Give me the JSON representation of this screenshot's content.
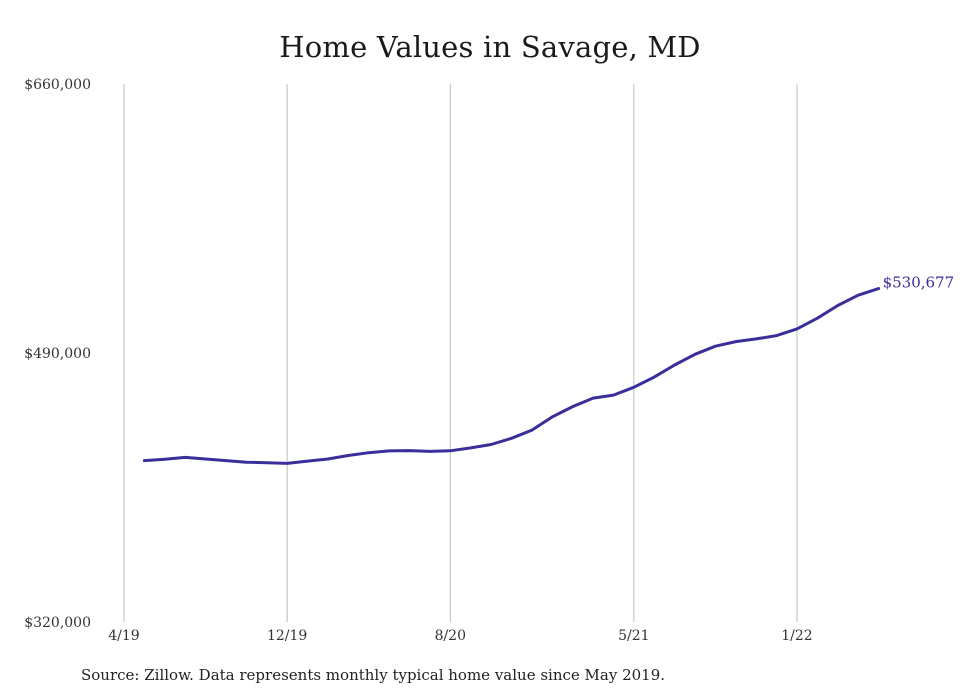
{
  "chart_data": {
    "type": "line",
    "title": "Home Values in Savage, MD",
    "source_note": "Source: Zillow. Data represents monthly typical home value since May 2019.",
    "xlabel": "",
    "ylabel": "",
    "ylim": [
      320000,
      660000
    ],
    "y_ticks": [
      {
        "value": 320000,
        "label": "$320,000"
      },
      {
        "value": 490000,
        "label": "$490,000"
      },
      {
        "value": 660000,
        "label": "$660,000"
      }
    ],
    "x_ticks": [
      {
        "value": "2019-04",
        "label": "4/19"
      },
      {
        "value": "2019-12",
        "label": "12/19"
      },
      {
        "value": "2020-08",
        "label": "8/20"
      },
      {
        "value": "2021-05",
        "label": "5/21"
      },
      {
        "value": "2022-01",
        "label": "1/22"
      }
    ],
    "grid": {
      "vertical": true,
      "horizontal": false
    },
    "line_color": "#3a2e9a",
    "end_label": "$530,677",
    "series": [
      {
        "x": [
          "2019-05",
          "2019-06",
          "2019-07",
          "2019-08",
          "2019-09",
          "2019-10",
          "2019-11",
          "2019-12",
          "2020-01",
          "2020-02",
          "2020-03",
          "2020-04",
          "2020-05",
          "2020-06",
          "2020-07",
          "2020-08",
          "2020-09",
          "2020-10",
          "2020-11",
          "2020-12",
          "2021-01",
          "2021-02",
          "2021-03",
          "2021-04",
          "2021-05",
          "2021-06",
          "2021-07",
          "2021-08",
          "2021-09",
          "2021-10",
          "2021-11",
          "2021-12",
          "2022-01",
          "2022-02",
          "2022-03",
          "2022-04",
          "2022-05"
        ],
        "values": [
          422000,
          422800,
          424000,
          423000,
          422000,
          421000,
          420700,
          420200,
          421700,
          423000,
          425200,
          427000,
          428100,
          428300,
          427800,
          428200,
          430000,
          432200,
          436100,
          441300,
          449600,
          456100,
          461500,
          463400,
          468300,
          474800,
          482400,
          489200,
          494300,
          497200,
          498900,
          501000,
          505200,
          512000,
          520000,
          526500,
          530677
        ]
      }
    ]
  }
}
